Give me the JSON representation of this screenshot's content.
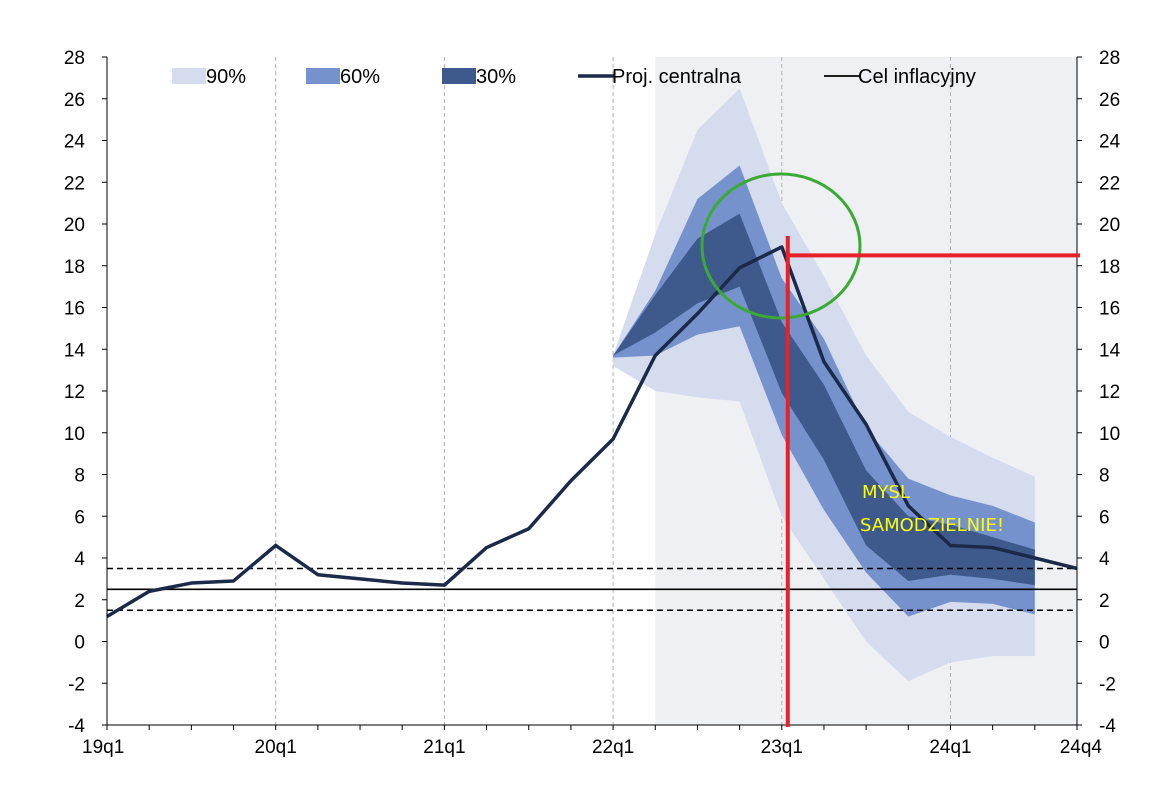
{
  "chart_data": {
    "type": "area",
    "title": "",
    "xlabel": "",
    "ylabel": "",
    "ylim": [
      -4,
      28
    ],
    "y_ticks": [
      -4,
      -2,
      0,
      2,
      4,
      6,
      8,
      10,
      12,
      14,
      16,
      18,
      20,
      22,
      24,
      26,
      28
    ],
    "x_ticks": [
      "19q1",
      "20q1",
      "21q1",
      "22q1",
      "23q1",
      "24q1",
      "24q4"
    ],
    "x": [
      "19q1",
      "19q2",
      "19q3",
      "19q4",
      "20q1",
      "20q2",
      "20q3",
      "20q4",
      "21q1",
      "21q2",
      "21q3",
      "21q4",
      "22q1",
      "22q2",
      "22q3",
      "22q4",
      "23q1",
      "23q2",
      "23q3",
      "23q4",
      "24q1",
      "24q2",
      "24q3",
      "24q4"
    ],
    "projection_start": "22q2",
    "central_projection": {
      "name": "Proj. centralna",
      "values": [
        1.2,
        2.4,
        2.8,
        2.9,
        4.6,
        3.2,
        3.0,
        2.8,
        2.7,
        4.5,
        5.4,
        7.7,
        9.7,
        13.7,
        15.7,
        17.9,
        18.9,
        13.4,
        10.4,
        6.5,
        4.6,
        4.5,
        4.0,
        3.5
      ]
    },
    "fan_bands": [
      {
        "name": "90%",
        "color": "#d5dced",
        "lower": [
          13.2,
          12.0,
          11.7,
          11.5,
          6.0,
          3.0,
          0.0,
          -1.9,
          -1.0,
          -0.7,
          -0.7
        ],
        "upper": [
          13.7,
          19.5,
          24.5,
          26.5,
          21.0,
          17.5,
          13.7,
          11.0,
          9.8,
          8.8,
          7.9
        ]
      },
      {
        "name": "60%",
        "color": "#7592cc",
        "lower": [
          13.6,
          13.7,
          14.7,
          15.1,
          9.9,
          6.3,
          3.3,
          1.2,
          1.9,
          1.8,
          1.3
        ],
        "upper": [
          13.7,
          16.8,
          21.2,
          22.8,
          17.4,
          14.5,
          10.2,
          7.8,
          7.0,
          6.5,
          5.7
        ]
      },
      {
        "name": "30%",
        "color": "#3e5a8d",
        "lower": [
          13.7,
          14.8,
          16.2,
          17.0,
          11.9,
          8.7,
          4.6,
          2.9,
          3.2,
          3.0,
          2.7
        ],
        "upper": [
          13.7,
          16.6,
          19.3,
          20.5,
          15.3,
          12.3,
          8.2,
          6.0,
          5.6,
          5.0,
          4.4
        ]
      }
    ],
    "inflation_target": {
      "name": "Cel inflacyjny",
      "value": 2.5,
      "band": [
        1.5,
        3.5
      ]
    },
    "annotations": {
      "red_vertical_at": "23q1",
      "red_horizontal_value": 18.5,
      "text_line1": "MYSL",
      "text_line2": "SAMODZIELNIE!"
    },
    "legend": {
      "position": "top",
      "items": [
        "90%",
        "60%",
        "30%",
        "Proj. centralna",
        "Cel inflacyjny"
      ]
    },
    "colors": {
      "projection_shade": "#eef0f3",
      "central_line": "#1b2a48",
      "grid": "#b0b0b0",
      "red": "#e8202a",
      "green": "#3aaa35",
      "annotation_text": "#ffff00"
    }
  }
}
